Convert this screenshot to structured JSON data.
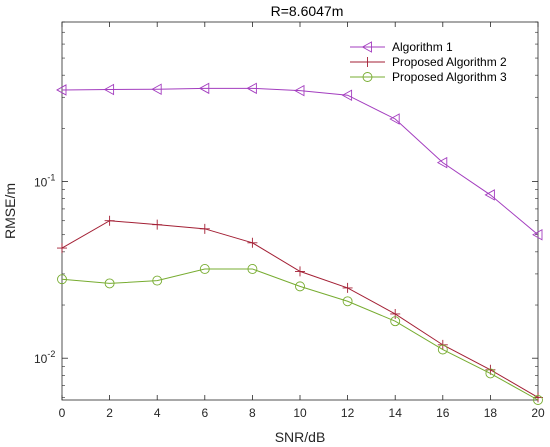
{
  "chart_data": {
    "type": "line",
    "title": "R=8.6047m",
    "xlabel": "SNR/dB",
    "ylabel": "RMSE/m",
    "x": [
      0,
      2,
      4,
      6,
      8,
      10,
      12,
      14,
      16,
      18,
      20
    ],
    "xlim": [
      0,
      20
    ],
    "xticks": [
      "0",
      "2",
      "4",
      "6",
      "8",
      "10",
      "12",
      "14",
      "16",
      "18",
      "20"
    ],
    "yscale": "log",
    "ylim": [
      0.0058,
      0.8
    ],
    "yticks": [
      {
        "value": 0.01,
        "base": "10",
        "exp": "-2"
      },
      {
        "value": 0.1,
        "base": "10",
        "exp": "-1"
      }
    ],
    "grid": false,
    "legend_position": "top-right",
    "series": [
      {
        "name": "Algorithm 1",
        "color": "#a33dbf",
        "marker": "triangle-left",
        "values": [
          0.33,
          0.332,
          0.333,
          0.337,
          0.337,
          0.327,
          0.308,
          0.226,
          0.128,
          0.084,
          0.05
        ]
      },
      {
        "name": "Proposed Algorithm 2",
        "color": "#a31f34",
        "marker": "plus",
        "values": [
          0.042,
          0.06,
          0.057,
          0.054,
          0.045,
          0.031,
          0.025,
          0.0178,
          0.0119,
          0.0086,
          0.006
        ]
      },
      {
        "name": "Proposed Algorithm 3",
        "color": "#77ac30",
        "marker": "circle",
        "values": [
          0.028,
          0.0265,
          0.0275,
          0.032,
          0.032,
          0.0255,
          0.021,
          0.0162,
          0.0112,
          0.0082,
          0.0058
        ]
      }
    ]
  }
}
